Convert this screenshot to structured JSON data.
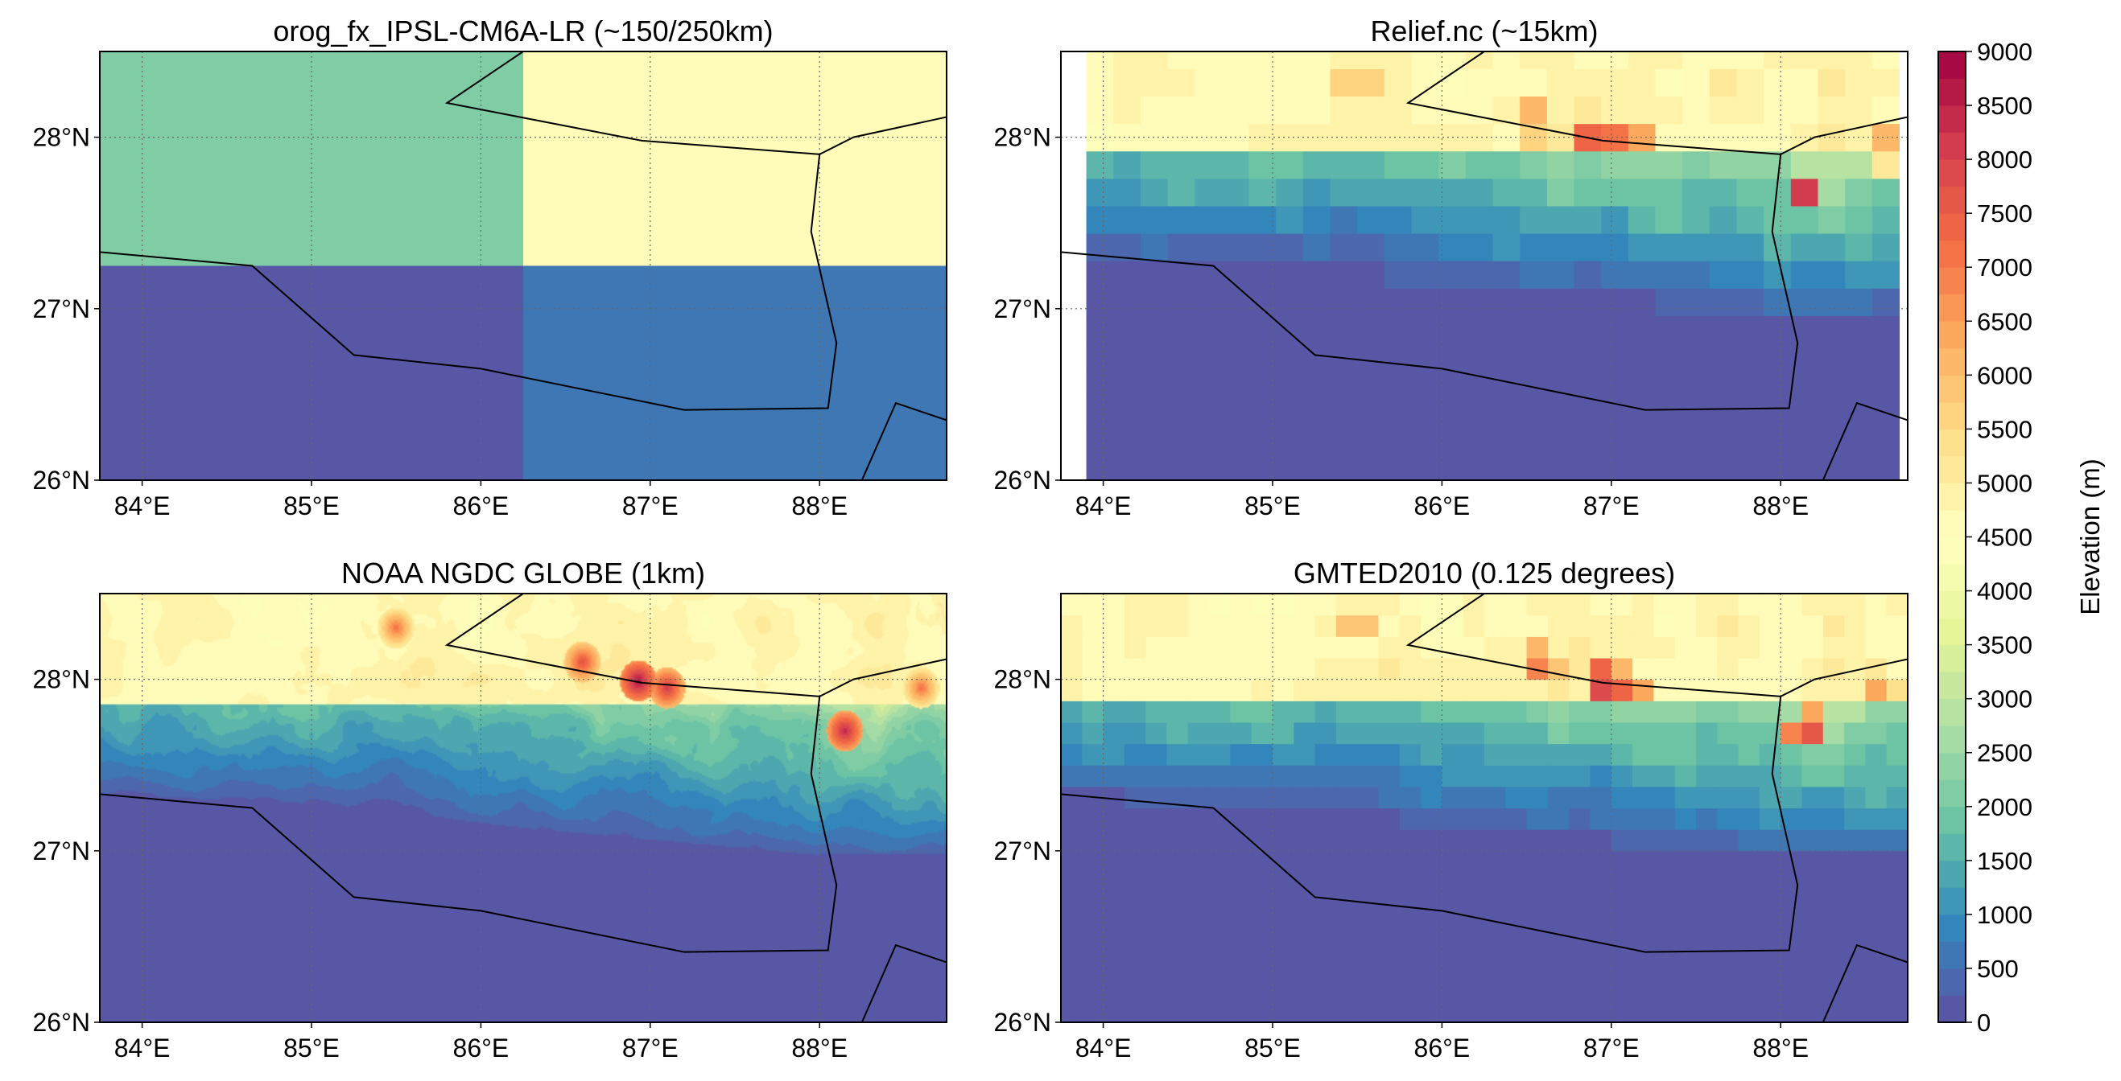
{
  "figure": {
    "panels": [
      {
        "id": "ipsl",
        "title": "orog_fx_IPSL-CM6A-LR (~150/250km)"
      },
      {
        "id": "relief",
        "title": "Relief.nc (~15km)"
      },
      {
        "id": "globe",
        "title": "NOAA NGDC GLOBE (1km)"
      },
      {
        "id": "gmted",
        "title": "GMTED2010 (0.125 degrees)"
      }
    ],
    "x_ticks": [
      "84°E",
      "85°E",
      "86°E",
      "87°E",
      "88°E"
    ],
    "y_ticks": [
      "26°N",
      "27°N",
      "28°N"
    ],
    "colorbar": {
      "label": "Elevation (m)",
      "ticks": [
        "0",
        "500",
        "1000",
        "1500",
        "2000",
        "2500",
        "3000",
        "3500",
        "4000",
        "4500",
        "5000",
        "5500",
        "6000",
        "6500",
        "7000",
        "7500",
        "8000",
        "8500",
        "9000"
      ]
    }
  },
  "chart_data": {
    "type": "heatmap",
    "colormap": "Spectral_r",
    "x_range": [
      83.75,
      88.75
    ],
    "y_range": [
      26.0,
      28.5
    ],
    "x_tick_values": [
      84,
      85,
      86,
      87,
      88
    ],
    "y_tick_values": [
      26,
      27,
      28
    ],
    "value_range": [
      0,
      9000
    ],
    "value_step": 250,
    "colorbar_label": "Elevation (m)",
    "grid": true,
    "panels": [
      {
        "title": "orog_fx_IPSL-CM6A-LR (~150/250km)",
        "cells": [
          {
            "lon": [
              83.75,
              86.25
            ],
            "lat": [
              27.25,
              28.5
            ],
            "value": 2200
          },
          {
            "lon": [
              86.25,
              88.75
            ],
            "lat": [
              27.25,
              28.5
            ],
            "value": 4600
          },
          {
            "lon": [
              83.75,
              86.25
            ],
            "lat": [
              26.0,
              27.25
            ],
            "value": 150
          },
          {
            "lon": [
              86.25,
              88.75
            ],
            "lat": [
              26.0,
              27.25
            ],
            "value": 650
          }
        ]
      },
      {
        "title": "Relief.nc (~15km)",
        "resolution_deg": 0.16
      },
      {
        "title": "NOAA NGDC GLOBE (1km)",
        "resolution_deg": 0.008
      },
      {
        "title": "GMTED2010 (0.125 degrees)",
        "resolution_deg": 0.125
      }
    ],
    "nepal_border": [
      [
        86.25,
        28.5
      ],
      [
        85.8,
        28.2
      ],
      [
        86.95,
        27.98
      ],
      [
        88.0,
        27.9
      ],
      [
        88.2,
        28.0
      ],
      [
        88.9,
        28.15
      ]
    ],
    "south_border": [
      [
        83.75,
        27.33
      ],
      [
        84.65,
        27.25
      ],
      [
        85.25,
        26.73
      ],
      [
        86.0,
        26.65
      ],
      [
        87.2,
        26.41
      ],
      [
        88.05,
        26.42
      ],
      [
        88.1,
        26.8
      ],
      [
        87.95,
        27.45
      ],
      [
        88.0,
        27.9
      ]
    ],
    "se_border": [
      [
        88.25,
        26.0
      ],
      [
        88.45,
        26.45
      ],
      [
        88.75,
        26.35
      ]
    ]
  }
}
